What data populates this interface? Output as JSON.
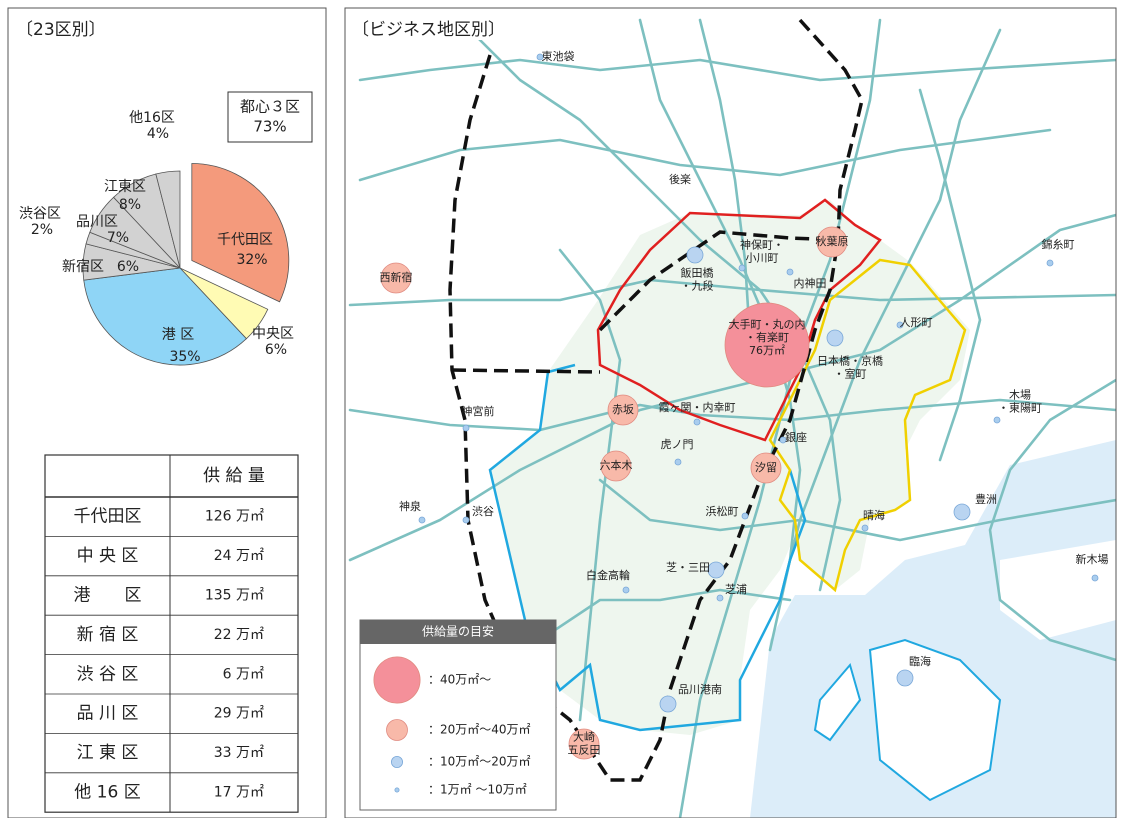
{
  "chart_data": {
    "type": "pie",
    "title": "〔23区別〕",
    "categories": [
      "千代田区",
      "中央区",
      "港 区",
      "新宿区",
      "渋谷区",
      "品川区",
      "江東区",
      "他16区"
    ],
    "values": [
      32,
      6,
      35,
      6,
      2,
      7,
      8,
      4
    ],
    "value_labels": [
      "32%",
      "6%",
      "35%",
      "6%",
      "2%",
      "7%",
      "8%",
      "4%"
    ],
    "colors": [
      "#f49a7c",
      "#fffbb4",
      "#8fd5f6",
      "#d2d2d2",
      "#d2d2d2",
      "#d2d2d2",
      "#d2d2d2",
      "#d2d2d2"
    ],
    "annotation": {
      "lines": [
        "都心３区",
        "73%"
      ]
    }
  },
  "table": {
    "header": [
      "",
      "供 給 量"
    ],
    "rows": [
      [
        "千代田区",
        "126 万㎡"
      ],
      [
        "中 央 区",
        "24 万㎡"
      ],
      [
        "港　　区",
        "135 万㎡"
      ],
      [
        "新 宿 区",
        "22 万㎡"
      ],
      [
        "渋 谷 区",
        "6 万㎡"
      ],
      [
        "品 川 区",
        "29 万㎡"
      ],
      [
        "江 東 区",
        "33 万㎡"
      ],
      [
        "他 16 区",
        "17 万㎡"
      ]
    ]
  },
  "map": {
    "title": "〔ビジネス地区別〕",
    "legend": {
      "title": "供給量の目安",
      "entries": [
        {
          "label": "：40万㎡～",
          "color": "#f4909a"
        },
        {
          "label": "：20万㎡～40万㎡",
          "color": "#f8b9a9"
        },
        {
          "label": "：10万㎡～20万㎡",
          "color": "#b9d4f1"
        },
        {
          "label": "：1万㎡ ～10万㎡",
          "color": "#a9cdee"
        }
      ]
    },
    "places": [
      {
        "lines": [
          "東池袋"
        ],
        "tier": 3
      },
      {
        "lines": [
          "後楽"
        ],
        "tier": null
      },
      {
        "lines": [
          "神保町・",
          "小川町"
        ],
        "tier": 3
      },
      {
        "lines": [
          "秋葉原"
        ],
        "tier": 1
      },
      {
        "lines": [
          "飯田橋",
          "・九段"
        ],
        "tier": 2
      },
      {
        "lines": [
          "西新宿"
        ],
        "tier": 1
      },
      {
        "lines": [
          "内神田"
        ],
        "tier": 3
      },
      {
        "lines": [
          "大手町・丸の内",
          "・有楽町",
          "76万㎡"
        ],
        "tier": 0
      },
      {
        "lines": [
          "日本橋・京橋",
          "・室町"
        ],
        "tier": 2
      },
      {
        "lines": [
          "人形町"
        ],
        "tier": 3
      },
      {
        "lines": [
          "錦糸町"
        ],
        "tier": 3
      },
      {
        "lines": [
          "赤坂"
        ],
        "tier": 1
      },
      {
        "lines": [
          "霞ヶ関・内幸町"
        ],
        "tier": 3
      },
      {
        "lines": [
          "神宮前"
        ],
        "tier": 3
      },
      {
        "lines": [
          "木場",
          "・東陽町"
        ],
        "tier": 3
      },
      {
        "lines": [
          "虎ノ門"
        ],
        "tier": 3
      },
      {
        "lines": [
          "銀座"
        ],
        "tier": 3
      },
      {
        "lines": [
          "六本木"
        ],
        "tier": 1
      },
      {
        "lines": [
          "汐留"
        ],
        "tier": 1
      },
      {
        "lines": [
          "神泉"
        ],
        "tier": 3
      },
      {
        "lines": [
          "渋谷"
        ],
        "tier": 3
      },
      {
        "lines": [
          "浜松町"
        ],
        "tier": 3
      },
      {
        "lines": [
          "晴海"
        ],
        "tier": 3
      },
      {
        "lines": [
          "豊洲"
        ],
        "tier": 2
      },
      {
        "lines": [
          "新木場"
        ],
        "tier": 3
      },
      {
        "lines": [
          "芝・三田"
        ],
        "tier": 2
      },
      {
        "lines": [
          "白金高輪"
        ],
        "tier": 3
      },
      {
        "lines": [
          "芝浦"
        ],
        "tier": 3
      },
      {
        "lines": [
          "臨海"
        ],
        "tier": 2
      },
      {
        "lines": [
          "品川港南"
        ],
        "tier": 2
      },
      {
        "lines": [
          "大崎",
          "五反田"
        ],
        "tier": 1
      }
    ]
  }
}
